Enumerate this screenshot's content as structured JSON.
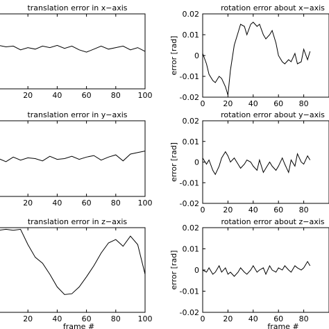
{
  "chart_data": [
    {
      "type": "line",
      "title": "translation error in x−axis",
      "xlabel": "",
      "ylabel": "",
      "xlim": [
        0,
        100
      ],
      "xticks": [
        20,
        40,
        60,
        80,
        100
      ],
      "x": [
        0,
        5,
        10,
        15,
        20,
        25,
        30,
        35,
        40,
        45,
        50,
        55,
        60,
        65,
        70,
        75,
        80,
        85,
        90,
        95,
        100
      ],
      "values": [
        0.58,
        0.56,
        0.57,
        0.52,
        0.55,
        0.53,
        0.57,
        0.55,
        0.58,
        0.54,
        0.57,
        0.52,
        0.49,
        0.53,
        0.57,
        0.53,
        0.55,
        0.57,
        0.52,
        0.55,
        0.5
      ]
    },
    {
      "type": "line",
      "title": "rotation error about x−axis",
      "xlabel": "",
      "ylabel": "error [rad]",
      "xlim": [
        0,
        100
      ],
      "ylim": [
        -0.02,
        0.02
      ],
      "xticks": [
        0,
        20,
        40,
        60,
        80
      ],
      "yticks": [
        "0.02",
        "0.01",
        "0",
        "-0.01",
        "-0.02"
      ],
      "x": [
        0,
        3,
        5,
        8,
        10,
        13,
        15,
        18,
        20,
        22,
        25,
        28,
        30,
        33,
        35,
        38,
        40,
        43,
        45,
        48,
        50,
        53,
        55,
        58,
        60,
        63,
        65,
        68,
        70,
        73,
        75,
        78,
        80,
        83,
        85
      ],
      "values": [
        0.001,
        -0.004,
        -0.009,
        -0.012,
        -0.013,
        -0.01,
        -0.011,
        -0.015,
        -0.019,
        -0.007,
        0.005,
        0.011,
        0.015,
        0.014,
        0.01,
        0.015,
        0.016,
        0.014,
        0.015,
        0.01,
        0.008,
        0.01,
        0.012,
        0.006,
        0.0,
        -0.003,
        -0.004,
        -0.002,
        -0.003,
        0.001,
        -0.004,
        -0.003,
        0.003,
        -0.002,
        0.002
      ]
    },
    {
      "type": "line",
      "title": "translation error in y−axis",
      "xlabel": "",
      "ylabel": "",
      "xlim": [
        0,
        100
      ],
      "xticks": [
        20,
        40,
        60,
        80,
        100
      ],
      "x": [
        0,
        5,
        10,
        15,
        20,
        25,
        30,
        35,
        40,
        45,
        50,
        55,
        60,
        65,
        70,
        75,
        80,
        85,
        90,
        95,
        100
      ],
      "values": [
        0.5,
        0.46,
        0.52,
        0.48,
        0.51,
        0.5,
        0.47,
        0.53,
        0.49,
        0.5,
        0.53,
        0.49,
        0.52,
        0.54,
        0.48,
        0.52,
        0.55,
        0.47,
        0.56,
        0.58,
        0.6
      ]
    },
    {
      "type": "line",
      "title": "rotation error about y−axis",
      "xlabel": "",
      "ylabel": "error [rad]",
      "xlim": [
        0,
        100
      ],
      "ylim": [
        -0.02,
        0.02
      ],
      "xticks": [
        0,
        20,
        40,
        60,
        80
      ],
      "yticks": [
        "0.02",
        "0.01",
        "0",
        "-0.01",
        "-0.02"
      ],
      "x": [
        0,
        3,
        5,
        8,
        10,
        13,
        15,
        18,
        20,
        22,
        25,
        28,
        30,
        33,
        35,
        38,
        40,
        43,
        45,
        48,
        50,
        53,
        55,
        58,
        60,
        63,
        65,
        68,
        70,
        73,
        75,
        78,
        80,
        83,
        85
      ],
      "values": [
        0.002,
        -0.001,
        0.001,
        -0.004,
        -0.006,
        -0.002,
        0.002,
        0.005,
        0.003,
        0.0,
        0.002,
        -0.001,
        -0.003,
        -0.001,
        0.001,
        0.0,
        -0.002,
        -0.004,
        0.001,
        -0.005,
        -0.003,
        0.0,
        -0.002,
        -0.004,
        -0.002,
        0.002,
        -0.001,
        -0.005,
        0.001,
        -0.002,
        0.004,
        0.0,
        -0.001,
        0.003,
        0.001
      ]
    },
    {
      "type": "line",
      "title": "translation error in z−axis",
      "xlabel": "frame #",
      "ylabel": "",
      "xlim": [
        0,
        100
      ],
      "xticks": [
        20,
        40,
        60,
        80,
        100
      ],
      "x": [
        0,
        5,
        10,
        15,
        20,
        25,
        30,
        35,
        40,
        45,
        50,
        55,
        60,
        65,
        70,
        75,
        80,
        85,
        90,
        95,
        100
      ],
      "values": [
        0.97,
        0.98,
        0.97,
        0.98,
        0.8,
        0.65,
        0.58,
        0.45,
        0.3,
        0.21,
        0.22,
        0.3,
        0.42,
        0.55,
        0.7,
        0.82,
        0.86,
        0.78,
        0.9,
        0.8,
        0.45
      ]
    },
    {
      "type": "line",
      "title": "rotation error about z−axis",
      "xlabel": "frame #",
      "ylabel": "error [rad]",
      "xlim": [
        0,
        100
      ],
      "ylim": [
        -0.02,
        0.02
      ],
      "xticks": [
        0,
        20,
        40,
        60,
        80
      ],
      "yticks": [
        "0.02",
        "0.01",
        "0",
        "-0.01",
        "-0.02"
      ],
      "x": [
        0,
        3,
        5,
        8,
        10,
        13,
        15,
        18,
        20,
        22,
        25,
        28,
        30,
        33,
        35,
        38,
        40,
        43,
        45,
        48,
        50,
        53,
        55,
        58,
        60,
        63,
        65,
        68,
        70,
        73,
        75,
        78,
        80,
        83,
        85
      ],
      "values": [
        0.0,
        -0.001,
        0.001,
        -0.002,
        -0.001,
        0.002,
        -0.001,
        0.001,
        -0.002,
        -0.001,
        -0.003,
        -0.001,
        0.001,
        -0.001,
        -0.002,
        0.0,
        0.002,
        -0.001,
        0.0,
        0.001,
        -0.002,
        0.002,
        0.0,
        -0.001,
        0.001,
        0.0,
        0.002,
        0.0,
        -0.001,
        0.002,
        0.001,
        0.0,
        0.001,
        0.004,
        0.002
      ]
    }
  ]
}
